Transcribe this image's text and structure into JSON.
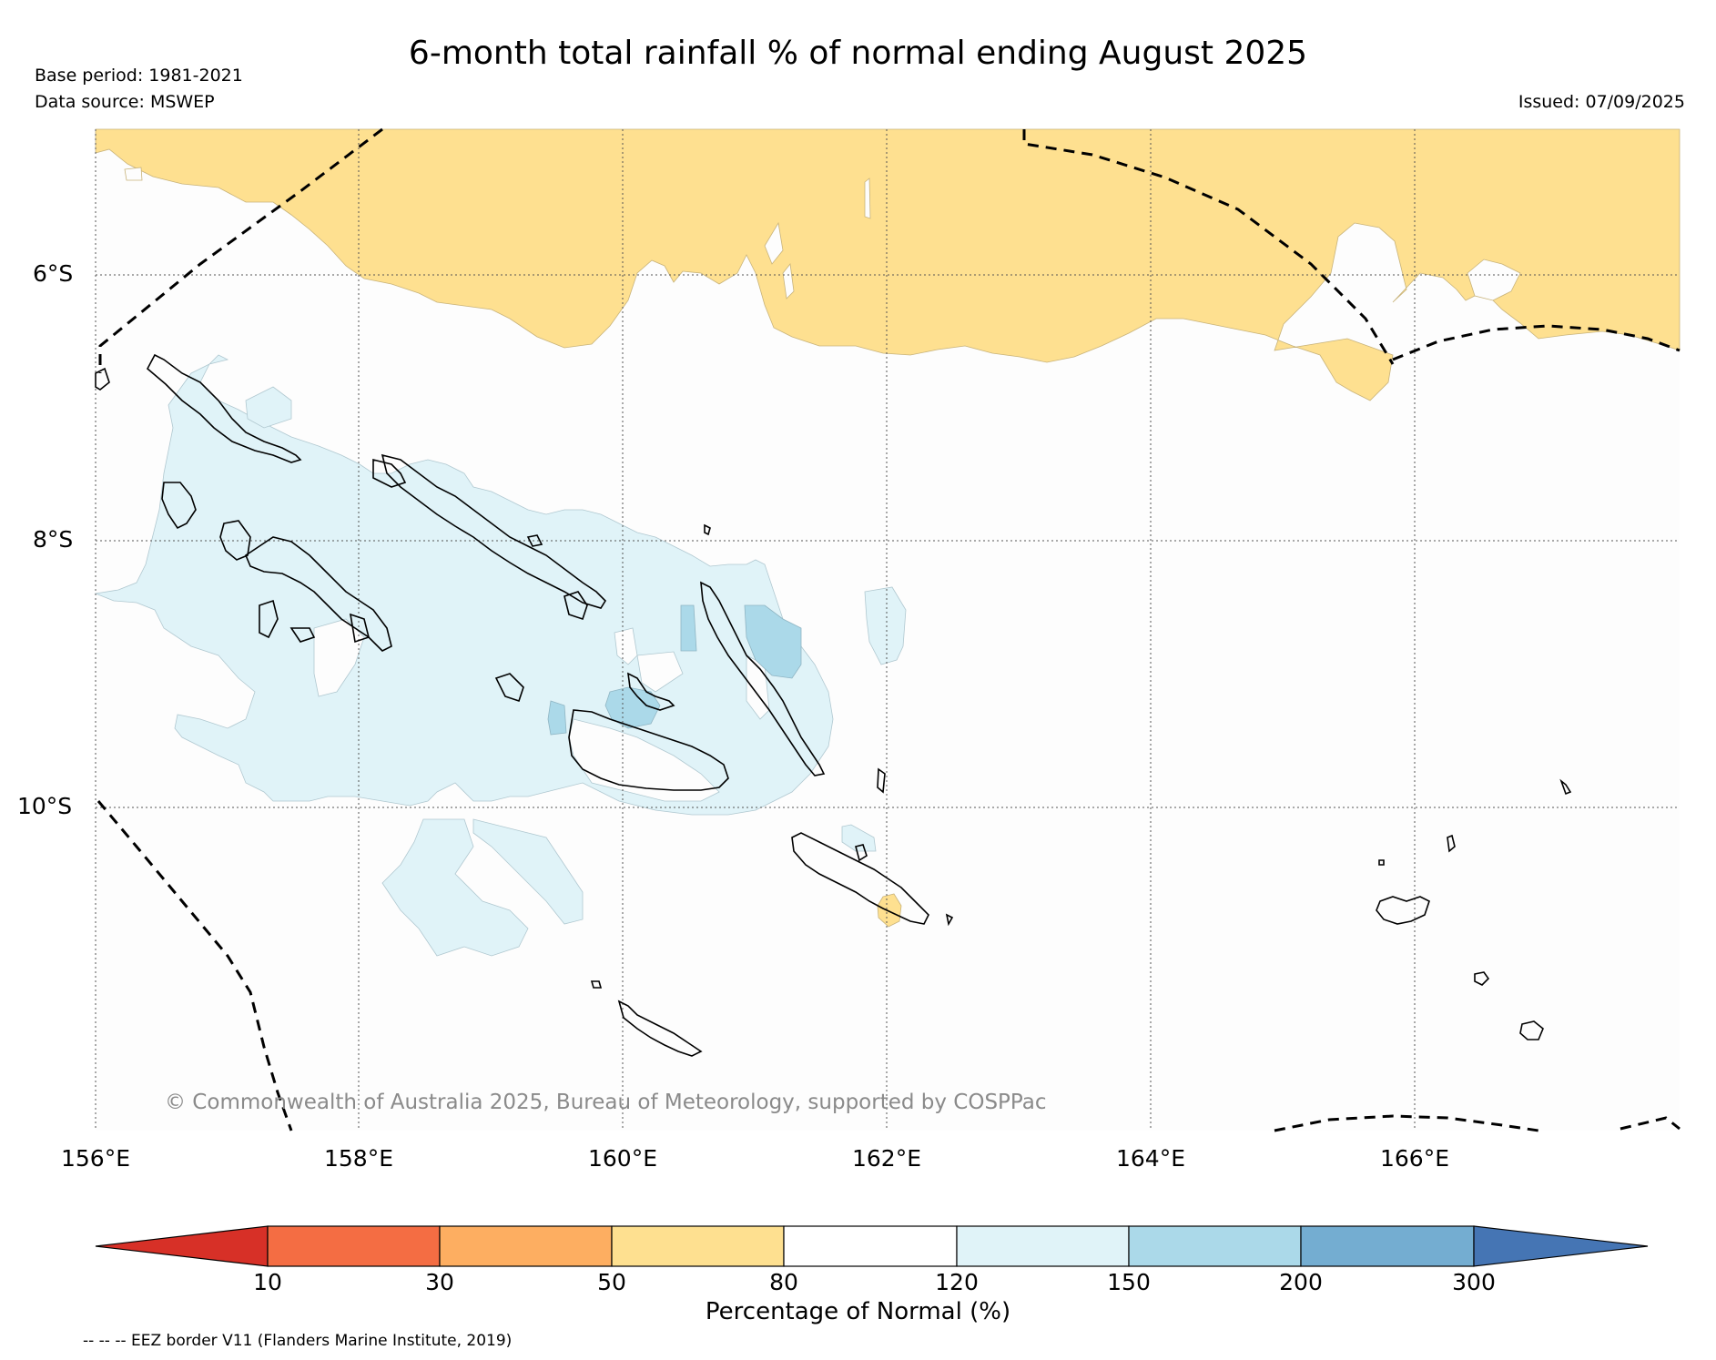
{
  "header": {
    "title": "6-month total rainfall % of normal ending August 2025",
    "base_period": "Base period: 1981-2021",
    "data_source": "Data source: MSWEP",
    "issued": "Issued: 07/09/2025"
  },
  "map": {
    "latitude_labels": [
      "6°S",
      "8°S",
      "10°S"
    ],
    "longitude_labels": [
      "156°E",
      "158°E",
      "160°E",
      "162°E",
      "164°E",
      "166°E"
    ],
    "copyright": "© Commonwealth of Australia 2025, Bureau of Meteorology, supported by COSPPac"
  },
  "colorbar": {
    "label": "Percentage of Normal (%)",
    "ticks": [
      "10",
      "30",
      "50",
      "80",
      "120",
      "150",
      "200",
      "300"
    ],
    "colors": [
      "#d73027",
      "#f46d43",
      "#fdae61",
      "#fee090",
      "#ffffff",
      "#e0f3f8",
      "#abd9e9",
      "#74add1",
      "#4575b4"
    ]
  },
  "legend": {
    "eez_note": "-- -- -- EEZ border V11 (Flanders Marine Institute, 2019)"
  }
}
